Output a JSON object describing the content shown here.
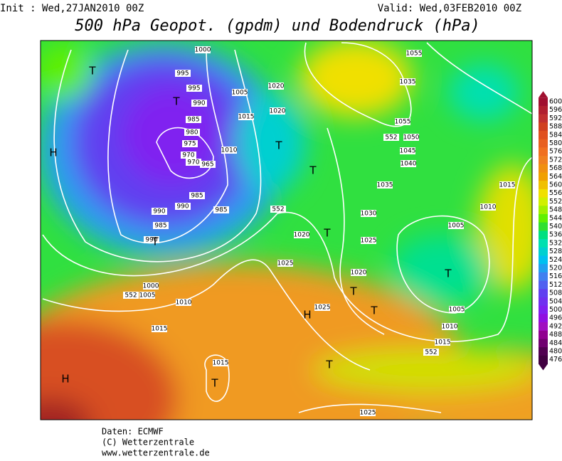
{
  "header": {
    "init": "Init : Wed,27JAN2010 00Z",
    "valid": "Valid: Wed,03FEB2010 00Z",
    "title": "500 hPa Geopot. (gpdm) und Bodendruck (hPa)"
  },
  "colorbar": {
    "labels": [
      600,
      596,
      592,
      588,
      584,
      580,
      576,
      572,
      568,
      564,
      560,
      556,
      552,
      548,
      544,
      540,
      536,
      532,
      528,
      524,
      520,
      516,
      512,
      508,
      504,
      500,
      496,
      492,
      488,
      484,
      480,
      476
    ],
    "colors": [
      "#a01030",
      "#b02030",
      "#c03030",
      "#d04020",
      "#e05020",
      "#e86020",
      "#f07020",
      "#f08020",
      "#f09010",
      "#f0a000",
      "#f0c000",
      "#f0e000",
      "#d0f000",
      "#a0f000",
      "#60f000",
      "#30e030",
      "#00e080",
      "#00e0b0",
      "#00d0d0",
      "#00c0f0",
      "#20a0f0",
      "#4080f0",
      "#5060f0",
      "#6040f0",
      "#7030f0",
      "#8020f0",
      "#9010e0",
      "#a010c0",
      "#900090",
      "#700070",
      "#500050",
      "#400040"
    ]
  },
  "map": {
    "isobar_labels": [
      1000,
      995,
      995,
      990,
      985,
      980,
      975,
      970,
      970,
      965,
      985,
      990,
      990,
      985,
      985,
      990,
      1005,
      1020,
      1020,
      1015,
      1010,
      552,
      1020,
      1025,
      1000,
      552,
      1005,
      1010,
      1015,
      1025,
      1015,
      1025,
      1055,
      1035,
      1055,
      552,
      1050,
      1045,
      1040,
      1035,
      1030,
      1025,
      1020,
      1015,
      1010,
      1005,
      1005,
      1010,
      1015,
      552
    ],
    "centers": [
      "T",
      "T",
      "H",
      "T",
      "T",
      "T",
      "T",
      "T",
      "T",
      "T",
      "H",
      "T",
      "T",
      "H"
    ]
  },
  "footer": {
    "lines": [
      "Daten: ECMWF",
      "(C) Wetterzentrale",
      "www.wetterzentrale.de"
    ]
  }
}
